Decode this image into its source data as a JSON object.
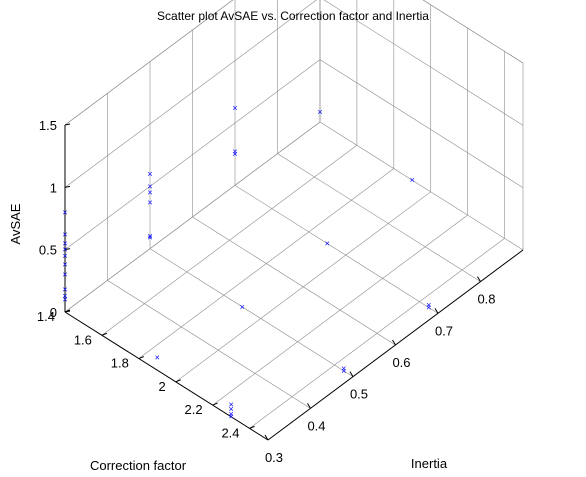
{
  "chart_data": {
    "type": "scatter3d",
    "title": "Scatter plot AvSAE vs. Correction factor and Inertia",
    "xlabel": "Inertia",
    "ylabel": "Correction factor",
    "zlabel": "AvSAE",
    "xlim": [
      0.3,
      0.9
    ],
    "ylim": [
      1.4,
      2.5
    ],
    "zlim": [
      0,
      1.5
    ],
    "x_ticks": [
      "0.3",
      "0.4",
      "0.5",
      "0.6",
      "0.7",
      "0.8"
    ],
    "y_ticks": [
      "1.4",
      "1.6",
      "1.8",
      "2",
      "2.2",
      "2.4"
    ],
    "z_ticks": [
      "0",
      "0.5",
      "1",
      "1.5"
    ],
    "grid": true,
    "marker": "x",
    "marker_color": "#0000ff",
    "series": [
      {
        "points": [
          {
            "x": 0.3,
            "y": 1.4,
            "z": 0.8
          },
          {
            "x": 0.3,
            "y": 1.4,
            "z": 0.62
          },
          {
            "x": 0.3,
            "y": 1.4,
            "z": 0.55
          },
          {
            "x": 0.3,
            "y": 1.4,
            "z": 0.5
          },
          {
            "x": 0.3,
            "y": 1.4,
            "z": 0.45
          },
          {
            "x": 0.3,
            "y": 1.4,
            "z": 0.38
          },
          {
            "x": 0.3,
            "y": 1.4,
            "z": 0.3
          },
          {
            "x": 0.3,
            "y": 1.4,
            "z": 0.18
          },
          {
            "x": 0.3,
            "y": 1.4,
            "z": 0.13
          },
          {
            "x": 0.3,
            "y": 1.4,
            "z": 0.1
          },
          {
            "x": 0.3,
            "y": 1.9,
            "z": 0.1
          },
          {
            "x": 0.3,
            "y": 2.3,
            "z": 0.1
          },
          {
            "x": 0.3,
            "y": 2.3,
            "z": 0.06
          },
          {
            "x": 0.3,
            "y": 2.3,
            "z": 0.02
          },
          {
            "x": 0.3,
            "y": 2.3,
            "z": 0.0
          },
          {
            "x": 0.5,
            "y": 1.4,
            "z": 0.6
          },
          {
            "x": 0.5,
            "y": 1.4,
            "z": 0.5
          },
          {
            "x": 0.5,
            "y": 1.4,
            "z": 0.45
          },
          {
            "x": 0.5,
            "y": 1.4,
            "z": 0.37
          },
          {
            "x": 0.5,
            "y": 1.4,
            "z": 0.1
          },
          {
            "x": 0.5,
            "y": 1.4,
            "z": 0.09
          },
          {
            "x": 0.5,
            "y": 1.9,
            "z": 0.0
          },
          {
            "x": 0.5,
            "y": 2.45,
            "z": 0.0
          },
          {
            "x": 0.5,
            "y": 2.45,
            "z": 0.02
          },
          {
            "x": 0.7,
            "y": 1.4,
            "z": 0.62
          },
          {
            "x": 0.7,
            "y": 1.4,
            "z": 0.27
          },
          {
            "x": 0.7,
            "y": 1.4,
            "z": 0.25
          },
          {
            "x": 0.7,
            "y": 1.9,
            "z": 0.0
          },
          {
            "x": 0.7,
            "y": 2.45,
            "z": 0.0
          },
          {
            "x": 0.7,
            "y": 2.45,
            "z": 0.02
          },
          {
            "x": 0.9,
            "y": 1.4,
            "z": 0.08
          },
          {
            "x": 0.9,
            "y": 1.9,
            "z": 0.0
          }
        ]
      }
    ]
  }
}
